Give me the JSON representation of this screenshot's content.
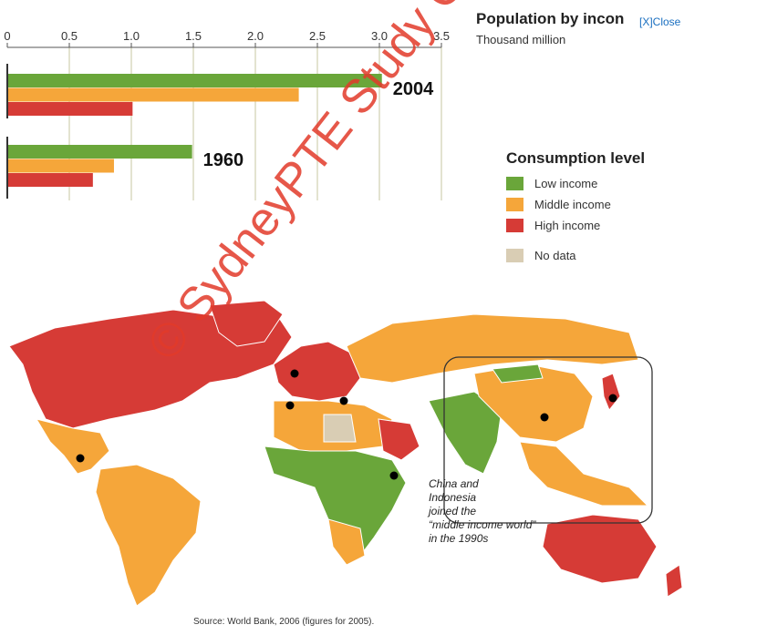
{
  "header": {
    "title": "Population by incon",
    "close_label": "[X]Close",
    "subtitle": "Thousand million"
  },
  "chart_data": {
    "type": "bar",
    "orientation": "horizontal",
    "title": "Population by income",
    "unit": "Thousand million",
    "xlim": [
      0,
      3.5
    ],
    "xticks": [
      "0",
      "0.5",
      "1.0",
      "1.5",
      "2.0",
      "2.5",
      "3.0",
      "3.5"
    ],
    "xtick_values": [
      0,
      0.5,
      1.0,
      1.5,
      2.0,
      2.5,
      3.0,
      3.5
    ],
    "grid": true,
    "categories": [
      "2004",
      "1960"
    ],
    "series": [
      {
        "name": "Low income",
        "values": [
          3.02,
          1.49
        ],
        "color": "#6aa63a"
      },
      {
        "name": "Middle income",
        "values": [
          2.35,
          0.86
        ],
        "color": "#f5a63a"
      },
      {
        "name": "High income",
        "values": [
          1.01,
          0.69
        ],
        "color": "#d63b36"
      }
    ]
  },
  "legend": {
    "title": "Consumption level",
    "items": [
      {
        "label": "Low income",
        "color": "#6aa63a"
      },
      {
        "label": "Middle income",
        "color": "#f5a63a"
      },
      {
        "label": "High income",
        "color": "#d63b36"
      },
      {
        "label": "No data",
        "color": "#d9cdb4"
      }
    ]
  },
  "map": {
    "annotation_lines": [
      "China and",
      "Indonesia",
      "joined the",
      "“middle income world”",
      "in the 1990s"
    ]
  },
  "source": "Source: World Bank, 2006 (figures for 2005).",
  "watermark": "© SydneyPTE Study Centre"
}
